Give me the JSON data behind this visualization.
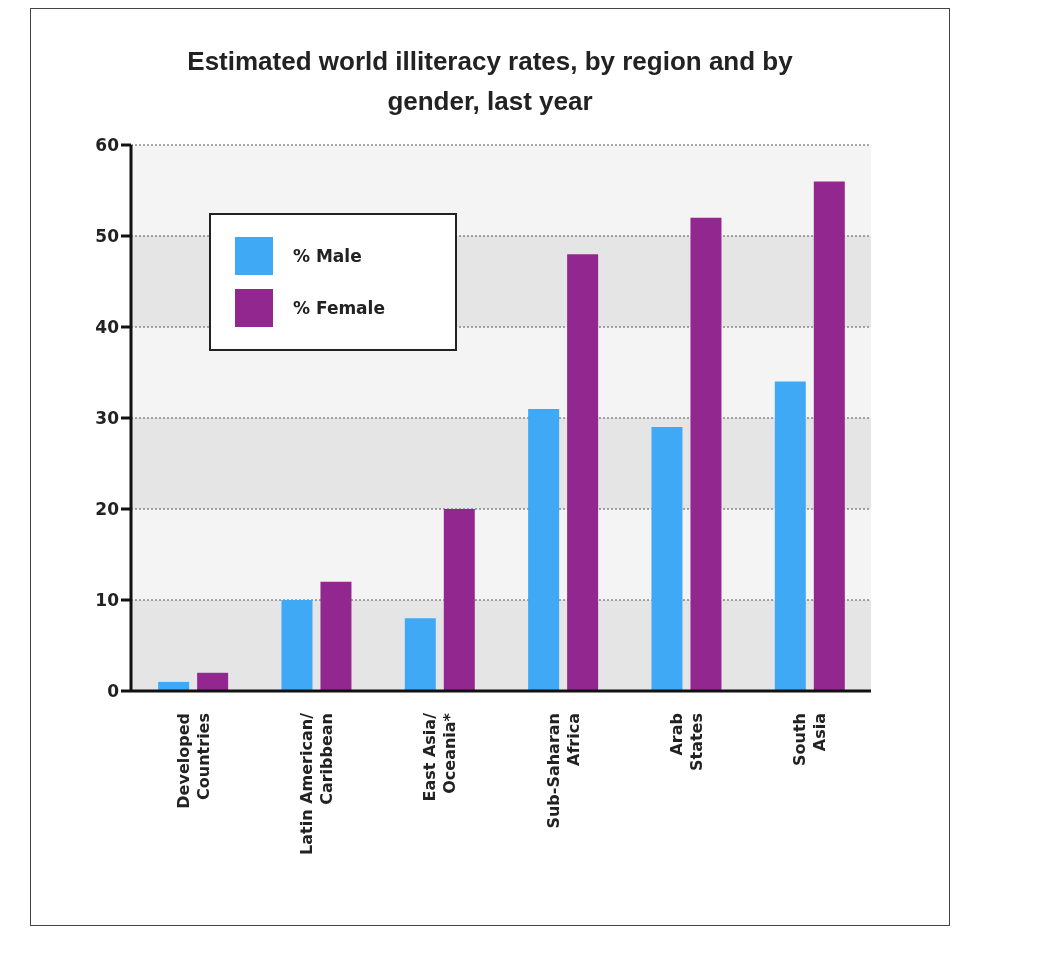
{
  "chart_data": {
    "type": "bar",
    "title": "Estimated world illiteracy rates, by region and by gender, last year",
    "categories": [
      "Developed\nCountries",
      "Latin American/\nCaribbean",
      "East Asia/\nOceania*",
      "Sub-Saharan\nAfrica",
      "Arab\nStates",
      "South\nAsia"
    ],
    "series": [
      {
        "name": "% Male",
        "color": "#3fa9f5",
        "values": [
          1,
          10,
          8,
          31,
          29,
          34
        ]
      },
      {
        "name": "% Female",
        "color": "#92278f",
        "values": [
          2,
          12,
          20,
          48,
          52,
          56
        ]
      }
    ],
    "ylim": [
      0,
      60
    ],
    "yticks": [
      0,
      10,
      20,
      30,
      40,
      50,
      60
    ],
    "grid": "y",
    "legend": "top left"
  }
}
